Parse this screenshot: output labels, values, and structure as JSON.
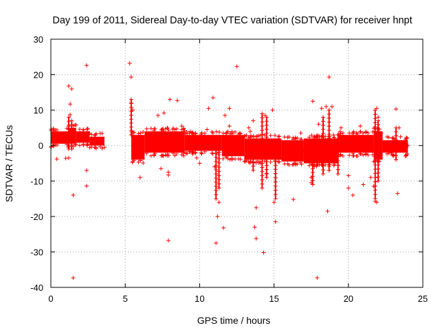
{
  "chart_data": {
    "type": "scatter",
    "title": "Day 199 of 2011, Sidereal Day-to-day VTEC variation (SDTVAR) for receiver hnpt",
    "xlabel": "GPS time / hours",
    "ylabel": "SDTVAR / TECUs",
    "xlim": [
      0,
      25
    ],
    "ylim": [
      -40,
      30
    ],
    "xticks": [
      0,
      5,
      10,
      15,
      20,
      25
    ],
    "yticks": [
      -40,
      -30,
      -20,
      -10,
      0,
      10,
      20,
      30
    ],
    "grid": true,
    "marker": "+",
    "color": "#ff0000",
    "dense_bands": [
      {
        "x": [
          0.0,
          1.2
        ],
        "y_min": 0.5,
        "y_max": 4.0
      },
      {
        "x": [
          1.2,
          1.7
        ],
        "y_min": 0.5,
        "y_max": 5.0
      },
      {
        "x": [
          1.7,
          2.6
        ],
        "y_min": 0.8,
        "y_max": 4.0
      },
      {
        "x": [
          2.6,
          3.6
        ],
        "y_min": 0.0,
        "y_max": 2.5
      },
      {
        "x": [
          5.4,
          6.3
        ],
        "y_min": -4.0,
        "y_max": 3.0
      },
      {
        "x": [
          6.3,
          9.0
        ],
        "y_min": -2.0,
        "y_max": 4.0
      },
      {
        "x": [
          9.0,
          11.5
        ],
        "y_min": -1.5,
        "y_max": 3.0
      },
      {
        "x": [
          11.5,
          13.0
        ],
        "y_min": -3.0,
        "y_max": 3.0
      },
      {
        "x": [
          13.0,
          15.5
        ],
        "y_min": -4.0,
        "y_max": 2.0
      },
      {
        "x": [
          15.5,
          17.0
        ],
        "y_min": -4.5,
        "y_max": 1.5
      },
      {
        "x": [
          17.0,
          19.3
        ],
        "y_min": -5.0,
        "y_max": 2.0
      },
      {
        "x": [
          19.3,
          21.7
        ],
        "y_min": -2.0,
        "y_max": 3.0
      },
      {
        "x": [
          21.7,
          22.3
        ],
        "y_min": -4.0,
        "y_max": 4.0
      },
      {
        "x": [
          22.3,
          24.0
        ],
        "y_min": -2.0,
        "y_max": 1.5
      }
    ],
    "columns": [
      {
        "x": 1.2,
        "y_min": -1.0,
        "y_max": 8.0
      },
      {
        "x": 1.4,
        "y_min": -1.0,
        "y_max": 7.0
      },
      {
        "x": 5.4,
        "y_min": 3.0,
        "y_max": 13.0
      },
      {
        "x": 11.1,
        "y_min": -15.0,
        "y_max": -1.0
      },
      {
        "x": 11.3,
        "y_min": -12.0,
        "y_max": 1.0
      },
      {
        "x": 13.6,
        "y_min": -7.0,
        "y_max": -1.0
      },
      {
        "x": 14.2,
        "y_min": -12.0,
        "y_max": 9.0
      },
      {
        "x": 14.5,
        "y_min": -9.0,
        "y_max": 8.0
      },
      {
        "x": 15.1,
        "y_min": -15.0,
        "y_max": -2.0
      },
      {
        "x": 17.6,
        "y_min": -11.0,
        "y_max": -2.0
      },
      {
        "x": 18.3,
        "y_min": -8.0,
        "y_max": 8.0
      },
      {
        "x": 18.7,
        "y_min": -7.0,
        "y_max": 10.0
      },
      {
        "x": 19.3,
        "y_min": -8.0,
        "y_max": 3.0
      },
      {
        "x": 21.8,
        "y_min": -15.0,
        "y_max": 10.0
      },
      {
        "x": 22.0,
        "y_min": -10.0,
        "y_max": 7.0
      },
      {
        "x": 23.2,
        "y_min": -4.0,
        "y_max": 5.0
      }
    ],
    "points": [
      [
        0.3,
        3.0
      ],
      [
        0.4,
        -3.8
      ],
      [
        0.5,
        2.0
      ],
      [
        1.0,
        -3.6
      ],
      [
        1.2,
        16.8
      ],
      [
        1.3,
        11.7
      ],
      [
        1.3,
        8.7
      ],
      [
        1.4,
        16.0
      ],
      [
        1.5,
        -14.0
      ],
      [
        1.5,
        -37.3
      ],
      [
        1.2,
        -3.5
      ],
      [
        2.4,
        22.6
      ],
      [
        2.4,
        -7.0
      ],
      [
        2.4,
        -11.4
      ],
      [
        3.4,
        1.5
      ],
      [
        3.6,
        -0.5
      ],
      [
        5.3,
        23.2
      ],
      [
        5.4,
        19.3
      ],
      [
        5.4,
        12.0
      ],
      [
        5.5,
        10.0
      ],
      [
        5.6,
        -3.0
      ],
      [
        6.0,
        -3.5
      ],
      [
        6.0,
        -9.0
      ],
      [
        5.7,
        -1.5
      ],
      [
        6.7,
        1.5
      ],
      [
        7.0,
        -0.3
      ],
      [
        7.2,
        8.5
      ],
      [
        7.4,
        -6.5
      ],
      [
        7.6,
        9.2
      ],
      [
        7.9,
        -7.5
      ],
      [
        7.9,
        -8.3
      ],
      [
        7.9,
        -26.8
      ],
      [
        8.0,
        13.0
      ],
      [
        8.0,
        2.0
      ],
      [
        8.2,
        4.5
      ],
      [
        8.5,
        12.7
      ],
      [
        8.8,
        5.5
      ],
      [
        9.0,
        4.2
      ],
      [
        9.5,
        -1.0
      ],
      [
        9.8,
        -3.5
      ],
      [
        10.0,
        -5.0
      ],
      [
        10.5,
        4.5
      ],
      [
        10.6,
        10.5
      ],
      [
        10.9,
        13.5
      ],
      [
        11.0,
        -6.0
      ],
      [
        11.1,
        -27.5
      ],
      [
        11.2,
        -20.0
      ],
      [
        11.3,
        -16.0
      ],
      [
        11.6,
        -23.2
      ],
      [
        11.7,
        8.5
      ],
      [
        12.0,
        5.5
      ],
      [
        12.0,
        10.5
      ],
      [
        12.2,
        -2.5
      ],
      [
        12.5,
        22.3
      ],
      [
        12.7,
        3.5
      ],
      [
        12.8,
        -1.0
      ],
      [
        13.3,
        5.0
      ],
      [
        13.4,
        4.0
      ],
      [
        13.6,
        7.0
      ],
      [
        13.7,
        -23.0
      ],
      [
        13.8,
        -26.2
      ],
      [
        13.8,
        -17.5
      ],
      [
        14.1,
        -5.0
      ],
      [
        14.2,
        -3.0
      ],
      [
        14.3,
        -30.2
      ],
      [
        14.5,
        -8.0
      ],
      [
        14.4,
        8.5
      ],
      [
        14.9,
        10.0
      ],
      [
        15.1,
        -21.5
      ],
      [
        15.0,
        -16.0
      ],
      [
        16.3,
        -15.2
      ],
      [
        16.8,
        3.5
      ],
      [
        17.0,
        -1.5
      ],
      [
        17.5,
        -9.0
      ],
      [
        17.6,
        12.5
      ],
      [
        17.9,
        -37.3
      ],
      [
        17.5,
        -10.5
      ],
      [
        18.0,
        6.0
      ],
      [
        18.2,
        10.5
      ],
      [
        18.5,
        11.0
      ],
      [
        18.6,
        -18.5
      ],
      [
        18.7,
        19.3
      ],
      [
        18.9,
        11.0
      ],
      [
        19.0,
        3.0
      ],
      [
        19.5,
        5.0
      ],
      [
        20.0,
        -12.0
      ],
      [
        20.0,
        -8.5
      ],
      [
        20.3,
        -14.0
      ],
      [
        20.8,
        5.5
      ],
      [
        21.0,
        -11.0
      ],
      [
        21.5,
        -9.0
      ],
      [
        21.7,
        -11.5
      ],
      [
        21.8,
        -15.7
      ],
      [
        21.9,
        -16.0
      ],
      [
        21.9,
        10.5
      ],
      [
        22.0,
        8.0
      ],
      [
        22.2,
        3.5
      ],
      [
        22.9,
        -2.0
      ],
      [
        23.2,
        10.3
      ],
      [
        23.3,
        -13.5
      ],
      [
        23.4,
        5.0
      ],
      [
        23.5,
        2.5
      ],
      [
        23.8,
        -0.5
      ],
      [
        24.0,
        0.0
      ]
    ]
  }
}
